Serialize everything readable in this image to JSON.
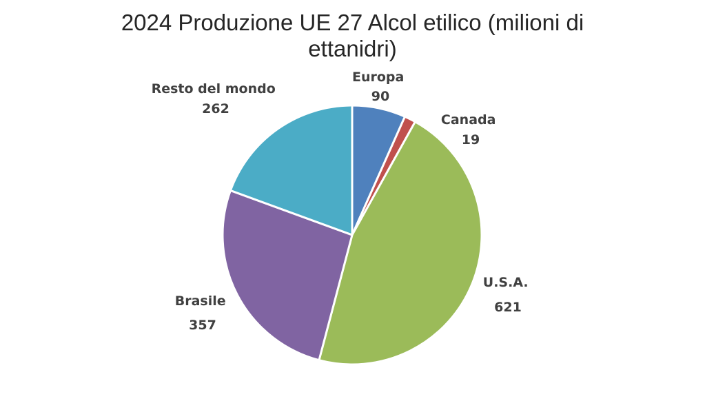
{
  "chart_data": {
    "type": "pie",
    "title_lines": [
      "2024 Produzione UE 27 Alcol etilico (milioni di",
      "ettanidri)"
    ],
    "slices": [
      {
        "label": "Europa",
        "value": 90,
        "color": "#4f81bd"
      },
      {
        "label": "Canada",
        "value": 19,
        "color": "#c0504d"
      },
      {
        "label": "U.S.A.",
        "value": 621,
        "color": "#9bbb59"
      },
      {
        "label": "Brasile",
        "value": 357,
        "color": "#8064a2"
      },
      {
        "label": "Resto del mondo",
        "value": 262,
        "color": "#4bacc6"
      }
    ],
    "start_angle_deg": 0,
    "direction": "clockwise",
    "data_labels": "category and value"
  }
}
